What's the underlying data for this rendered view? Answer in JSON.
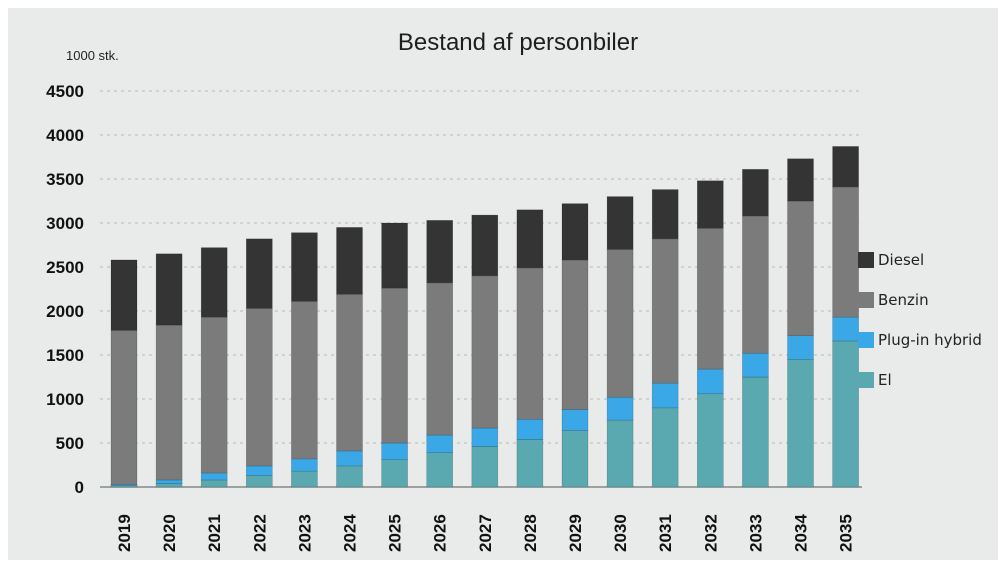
{
  "chart_data": {
    "type": "bar",
    "stacked": true,
    "title": "Bestand af personbiler",
    "unit_label": "1000 stk.",
    "xlabel": "",
    "ylabel": "",
    "ylim": [
      0,
      4500
    ],
    "yticks": [
      "0",
      "500",
      "1000",
      "1500",
      "2000",
      "2500",
      "3000",
      "3500",
      "4000",
      "4500"
    ],
    "grid": true,
    "legend_position": "right",
    "categories": [
      "2019",
      "2020",
      "2021",
      "2022",
      "2023",
      "2024",
      "2025",
      "2026",
      "2027",
      "2028",
      "2029",
      "2030",
      "2031",
      "2032",
      "2033",
      "2034",
      "2035"
    ],
    "series": [
      {
        "name": "El",
        "color": "#5aa9b0",
        "values": [
          15,
          40,
          80,
          130,
          180,
          240,
          310,
          390,
          460,
          540,
          640,
          760,
          900,
          1060,
          1250,
          1450,
          1660
        ]
      },
      {
        "name": "Plug-in hybrid",
        "color": "#3aa7e6",
        "values": [
          15,
          40,
          80,
          110,
          140,
          170,
          190,
          200,
          210,
          230,
          240,
          260,
          280,
          280,
          270,
          270,
          270
        ]
      },
      {
        "name": "Benzin",
        "color": "#7b7b7b",
        "values": [
          1750,
          1760,
          1770,
          1790,
          1790,
          1780,
          1760,
          1730,
          1730,
          1720,
          1700,
          1680,
          1640,
          1600,
          1560,
          1530,
          1480
        ]
      },
      {
        "name": "Diesel",
        "color": "#343434",
        "values": [
          800,
          810,
          790,
          790,
          780,
          760,
          740,
          710,
          690,
          660,
          640,
          600,
          560,
          540,
          530,
          480,
          460
        ]
      }
    ],
    "legend_order": [
      "Diesel",
      "Benzin",
      "Plug-in hybrid",
      "El"
    ]
  }
}
